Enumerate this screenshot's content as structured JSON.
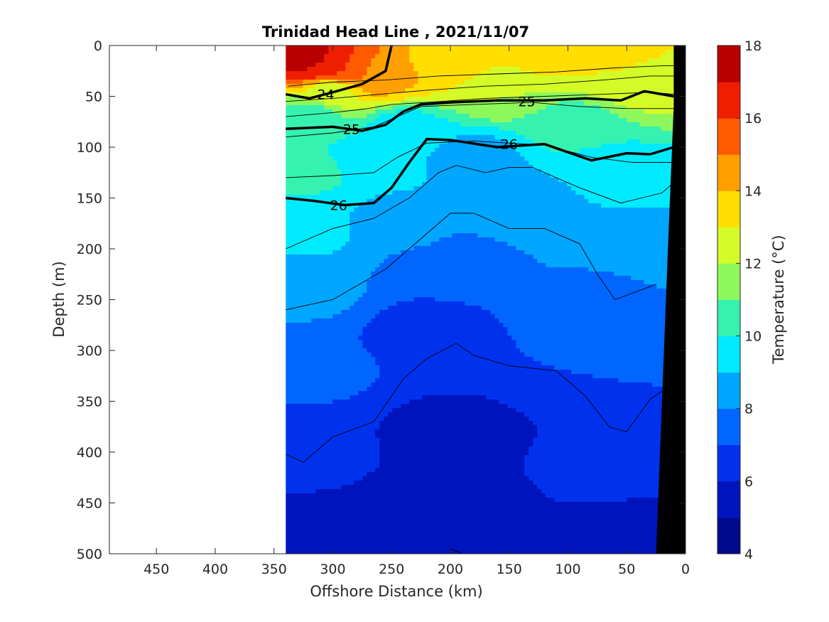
{
  "chart_data": {
    "type": "contour",
    "title": "Trinidad Head Line , 2021/11/07",
    "xlabel": "Offshore Distance (km)",
    "ylabel": "Depth (m)",
    "xlim": [
      490,
      0
    ],
    "ylim": [
      500,
      0
    ],
    "x_reversed": true,
    "y_reversed": true,
    "x_ticks": [
      450,
      400,
      350,
      300,
      250,
      200,
      150,
      100,
      50,
      0
    ],
    "y_ticks": [
      0,
      50,
      100,
      150,
      200,
      250,
      300,
      350,
      400,
      450,
      500
    ],
    "data_x_range": [
      340,
      10
    ],
    "colorbar": {
      "label": "Temperature (°C)",
      "ticks": [
        4,
        6,
        8,
        10,
        12,
        14,
        16,
        18
      ],
      "levels": [
        4,
        5,
        6,
        7,
        8,
        9,
        10,
        11,
        12,
        13,
        14,
        15,
        16,
        17,
        18
      ],
      "colors": [
        "#000a8c",
        "#0014be",
        "#0032ee",
        "#0066ff",
        "#00a6ff",
        "#00eaff",
        "#36f2b0",
        "#8df85c",
        "#d4fb27",
        "#ffde00",
        "#ffa000",
        "#ff5a00",
        "#f01e00",
        "#b80000"
      ]
    },
    "isotherms": [
      {
        "temperature": 13,
        "points": [
          [
            338,
            40
          ],
          [
            300,
            36
          ],
          [
            255,
            34
          ],
          [
            210,
            30
          ],
          [
            160,
            28
          ],
          [
            110,
            26
          ],
          [
            60,
            22
          ],
          [
            20,
            20
          ],
          [
            10,
            20
          ]
        ]
      },
      {
        "temperature": 12,
        "points": [
          [
            340,
            55
          ],
          [
            300,
            52
          ],
          [
            260,
            48
          ],
          [
            220,
            44
          ],
          [
            170,
            40
          ],
          [
            120,
            38
          ],
          [
            70,
            34
          ],
          [
            30,
            30
          ],
          [
            10,
            30
          ]
        ]
      },
      {
        "temperature": 11,
        "points": [
          [
            340,
            70
          ],
          [
            300,
            66
          ],
          [
            270,
            62
          ],
          [
            250,
            58
          ],
          [
            220,
            56
          ],
          [
            170,
            52
          ],
          [
            120,
            50
          ],
          [
            70,
            48
          ],
          [
            30,
            46
          ],
          [
            10,
            48
          ]
        ]
      },
      {
        "temperature": 10,
        "points": [
          [
            340,
            90
          ],
          [
            300,
            86
          ],
          [
            265,
            80
          ],
          [
            245,
            70
          ],
          [
            225,
            60
          ],
          [
            180,
            58
          ],
          [
            130,
            56
          ],
          [
            90,
            60
          ],
          [
            50,
            62
          ],
          [
            10,
            62
          ]
        ]
      },
      {
        "temperature": 9,
        "points": [
          [
            340,
            130
          ],
          [
            300,
            128
          ],
          [
            265,
            125
          ],
          [
            245,
            110
          ],
          [
            220,
            96
          ],
          [
            180,
            94
          ],
          [
            150,
            96
          ],
          [
            120,
            98
          ],
          [
            80,
            110
          ],
          [
            45,
            115
          ],
          [
            10,
            115
          ]
        ]
      },
      {
        "temperature": 8,
        "points": [
          [
            340,
            200
          ],
          [
            300,
            180
          ],
          [
            265,
            170
          ],
          [
            235,
            150
          ],
          [
            210,
            125
          ],
          [
            195,
            118
          ],
          [
            170,
            125
          ],
          [
            150,
            120
          ],
          [
            130,
            120
          ],
          [
            90,
            140
          ],
          [
            55,
            155
          ],
          [
            20,
            145
          ],
          [
            10,
            135
          ]
        ]
      },
      {
        "temperature": 7,
        "points": [
          [
            340,
            260
          ],
          [
            300,
            250
          ],
          [
            255,
            220
          ],
          [
            230,
            195
          ],
          [
            200,
            165
          ],
          [
            180,
            165
          ],
          [
            150,
            180
          ],
          [
            120,
            180
          ],
          [
            90,
            195
          ],
          [
            75,
            225
          ],
          [
            60,
            250
          ],
          [
            25,
            235
          ]
        ]
      },
      {
        "temperature": 6,
        "points": [
          [
            340,
            402
          ],
          [
            325,
            410
          ],
          [
            300,
            385
          ],
          [
            265,
            370
          ],
          [
            240,
            328
          ],
          [
            220,
            308
          ],
          [
            195,
            293
          ],
          [
            180,
            305
          ],
          [
            150,
            315
          ],
          [
            110,
            320
          ],
          [
            85,
            345
          ],
          [
            65,
            375
          ],
          [
            50,
            380
          ],
          [
            30,
            348
          ],
          [
            20,
            340
          ]
        ]
      },
      {
        "temperature": 5,
        "points": [
          [
            200,
            495
          ],
          [
            190,
            500
          ]
        ]
      }
    ],
    "density_contours": [
      {
        "value": 24,
        "points": [
          [
            340,
            48
          ],
          [
            320,
            52
          ],
          [
            300,
            46
          ],
          [
            275,
            38
          ],
          [
            255,
            25
          ],
          [
            250,
            0
          ]
        ]
      },
      {
        "value": 25,
        "points": [
          [
            340,
            82
          ],
          [
            300,
            80
          ],
          [
            275,
            84
          ],
          [
            255,
            78
          ],
          [
            240,
            65
          ],
          [
            225,
            58
          ],
          [
            200,
            56
          ],
          [
            160,
            54
          ],
          [
            120,
            54
          ],
          [
            85,
            52
          ],
          [
            55,
            54
          ],
          [
            35,
            45
          ],
          [
            10,
            50
          ]
        ]
      },
      {
        "value": 26,
        "points": [
          [
            340,
            150
          ],
          [
            315,
            153
          ],
          [
            290,
            157
          ],
          [
            265,
            155
          ],
          [
            250,
            140
          ],
          [
            235,
            115
          ],
          [
            220,
            92
          ],
          [
            200,
            93
          ],
          [
            160,
            100
          ],
          [
            120,
            97
          ],
          [
            80,
            113
          ],
          [
            50,
            106
          ],
          [
            30,
            107
          ],
          [
            10,
            100
          ]
        ]
      }
    ],
    "field_points": [
      {
        "x": 330,
        "y": 10,
        "t": 18
      },
      {
        "x": 310,
        "y": 20,
        "t": 17
      },
      {
        "x": 290,
        "y": 25,
        "t": 16
      },
      {
        "x": 270,
        "y": 30,
        "t": 15
      },
      {
        "x": 255,
        "y": 30,
        "t": 14
      },
      {
        "x": 200,
        "y": 15,
        "t": 13.5
      },
      {
        "x": 120,
        "y": 10,
        "t": 13.5
      },
      {
        "x": 60,
        "y": 10,
        "t": 13.3
      },
      {
        "x": 300,
        "y": 45,
        "t": 12.5
      },
      {
        "x": 150,
        "y": 45,
        "t": 12
      },
      {
        "x": 40,
        "y": 35,
        "t": 12.5
      },
      {
        "x": 320,
        "y": 70,
        "t": 10.5
      },
      {
        "x": 240,
        "y": 80,
        "t": 9.5
      },
      {
        "x": 100,
        "y": 80,
        "t": 10.2
      },
      {
        "x": 320,
        "y": 120,
        "t": 10.3
      },
      {
        "x": 270,
        "y": 110,
        "t": 9.3
      },
      {
        "x": 180,
        "y": 110,
        "t": 8.5
      },
      {
        "x": 60,
        "y": 130,
        "t": 9.2
      },
      {
        "x": 320,
        "y": 180,
        "t": 9.3
      },
      {
        "x": 240,
        "y": 180,
        "t": 8.2
      },
      {
        "x": 140,
        "y": 160,
        "t": 8.3
      },
      {
        "x": 60,
        "y": 200,
        "t": 8.5
      },
      {
        "x": 320,
        "y": 240,
        "t": 8.2
      },
      {
        "x": 200,
        "y": 220,
        "t": 7.2
      },
      {
        "x": 80,
        "y": 240,
        "t": 7.8
      },
      {
        "x": 320,
        "y": 320,
        "t": 7.2
      },
      {
        "x": 220,
        "y": 280,
        "t": 6.6
      },
      {
        "x": 100,
        "y": 300,
        "t": 7
      },
      {
        "x": 320,
        "y": 400,
        "t": 6.2
      },
      {
        "x": 200,
        "y": 380,
        "t": 5.7
      },
      {
        "x": 80,
        "y": 420,
        "t": 6.2
      },
      {
        "x": 320,
        "y": 480,
        "t": 5.8
      },
      {
        "x": 200,
        "y": 460,
        "t": 5.2
      },
      {
        "x": 180,
        "y": 490,
        "t": 5.2
      },
      {
        "x": 60,
        "y": 480,
        "t": 5.8
      }
    ],
    "bathymetry_fill": "#000000",
    "bathymetry": [
      [
        10,
        0
      ],
      [
        10,
        60
      ],
      [
        15,
        200
      ],
      [
        20,
        350
      ],
      [
        25,
        500
      ],
      [
        0,
        500
      ],
      [
        0,
        0
      ]
    ],
    "grid": false
  }
}
